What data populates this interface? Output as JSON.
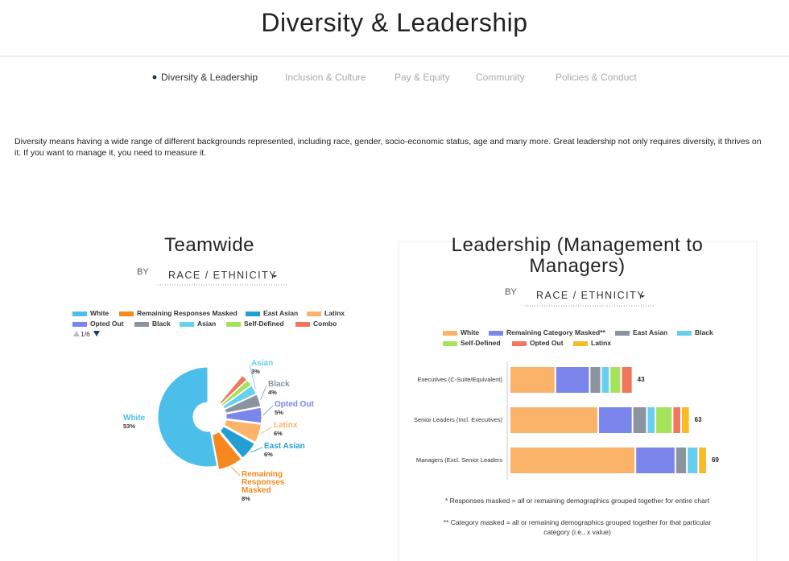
{
  "header": {
    "title": "Diversity & Leadership"
  },
  "nav": [
    "Diversity & Leadership",
    "Inclusion & Culture",
    "Pay & Equity",
    "Community",
    "Policies & Conduct"
  ],
  "intro": "Diversity means having a wide range of different backgrounds represented, including race, gender, socio-economic status, age and many more. Great leadership not only requires diversity, it thrives on it. If you want to manage it, you need to measure it.",
  "chart_data": [
    {
      "type": "pie",
      "title": "Teamwide",
      "by_label": "BY",
      "dropdown": "RACE / ETHNICITY",
      "legend_page": "1/6",
      "categories": [
        "White",
        "Remaining Responses Masked",
        "East Asian",
        "Latinx",
        "Opted Out",
        "Black",
        "Asian",
        "Self-Defined",
        "Combo"
      ],
      "colors": [
        "#4bbfea",
        "#f5891f",
        "#249fd4",
        "#fbb36a",
        "#7b86ec",
        "#8a939e",
        "#67d0f0",
        "#a4e35a",
        "#f2765e"
      ],
      "values": [
        53,
        8,
        6,
        6,
        5,
        4,
        3,
        2,
        2
      ],
      "value_labels": [
        "53%",
        "8%",
        "6%",
        "6%",
        "5%",
        "4%",
        "3%",
        null,
        null
      ]
    },
    {
      "type": "bar",
      "orientation": "horizontal",
      "stacked": true,
      "title": "Leadership (Management to Managers)",
      "by_label": "BY",
      "dropdown": "RACE / ETHNICITY",
      "categories": [
        "Executives (C-Suite/Equivalent)",
        "Senior Leaders (Incl. Executives)",
        "Managers (Excl. Senior Leaders"
      ],
      "totals": [
        43,
        63,
        69
      ],
      "series": [
        {
          "name": "White",
          "color": "#fbb36a",
          "values": [
            16,
            31,
            44
          ]
        },
        {
          "name": "Remaining Category Masked**",
          "color": "#7b86ec",
          "values": [
            12,
            12,
            14
          ]
        },
        {
          "name": "East Asian",
          "color": "#8a939e",
          "values": [
            4,
            5,
            4
          ]
        },
        {
          "name": "Black",
          "color": "#67d0f0",
          "values": [
            3,
            3,
            4
          ]
        },
        {
          "name": "Self-Defined",
          "color": "#a4e35a",
          "values": [
            4,
            6,
            0
          ]
        },
        {
          "name": "Opted Out",
          "color": "#f2765e",
          "values": [
            4,
            3,
            0
          ]
        },
        {
          "name": "Latinx",
          "color": "#f7bc25",
          "values": [
            0,
            3,
            3
          ]
        }
      ],
      "footnotes": [
        "* Responses masked = all or remaining demographics grouped together for entire chart",
        "** Category masked = all or remaining demographics grouped together for that particular category (i.e., x value)"
      ]
    }
  ]
}
